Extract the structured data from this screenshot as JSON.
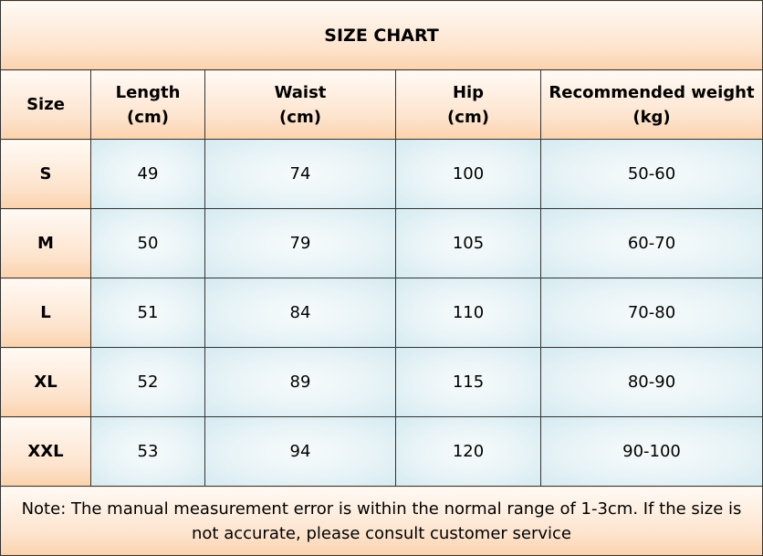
{
  "title": "SIZE CHART",
  "table": {
    "header": [
      [
        "Size"
      ],
      [
        "Length",
        "(cm)"
      ],
      [
        "Waist",
        "(cm)"
      ],
      [
        "Hip",
        "(cm)"
      ],
      [
        "Recommended weight",
        "(kg)"
      ]
    ],
    "rows": [
      [
        "S",
        "49",
        "74",
        "100",
        "50-60"
      ],
      [
        "M",
        "50",
        "79",
        "105",
        "60-70"
      ],
      [
        "L",
        "51",
        "84",
        "110",
        "70-80"
      ],
      [
        "XL",
        "52",
        "89",
        "115",
        "80-90"
      ],
      [
        "XXL",
        "53",
        "94",
        "120",
        "90-100"
      ]
    ]
  },
  "note": "Note: The manual measurement error is within the normal range of 1-3cm. If the size is not accurate, please consult customer service"
}
